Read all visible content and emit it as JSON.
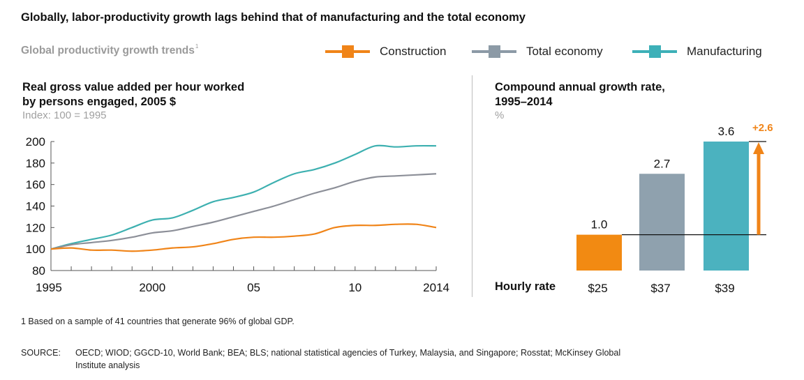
{
  "headline": "Globally, labor-productivity growth lags behind that of manufacturing and the total economy",
  "subhead": "Global productivity growth trends",
  "subhead_footnote_marker": "1",
  "legend": [
    {
      "label": "Construction",
      "color": "#F08418"
    },
    {
      "label": "Total economy",
      "color": "#8C9AA6"
    },
    {
      "label": "Manufacturing",
      "color": "#3DB0B8"
    }
  ],
  "left_panel": {
    "title_line1": "Real gross value added per hour worked",
    "title_line2": "by persons engaged, 2005 $",
    "subtitle": "Index: 100 = 1995"
  },
  "right_panel": {
    "title_line1": "Compound annual growth rate,",
    "title_line2": "1995–2014",
    "subtitle": "%",
    "hourly_rate_label": "Hourly rate"
  },
  "footnote": "1  Based on a sample of 41 countries that generate 96% of global GDP.",
  "source_label": "SOURCE:",
  "source_line1": "OECD; WIOD; GGCD-10, World Bank; BEA; BLS; national statistical agencies of Turkey, Malaysia, and Singapore; Rosstat; McKinsey Global",
  "source_line2": "Institute analysis",
  "chart_data": [
    {
      "type": "line",
      "title": "Real gross value added per hour worked by persons engaged, 2005 $",
      "subtitle": "Index: 100 = 1995",
      "xlabel": "",
      "ylabel": "",
      "ylim": [
        80,
        200
      ],
      "xlim": [
        1995,
        2014
      ],
      "yticks": [
        80,
        100,
        120,
        140,
        160,
        180,
        200
      ],
      "ytick_labels": [
        "80",
        "100",
        "120",
        "140",
        "160",
        "180",
        "200"
      ],
      "xticks": [
        1995,
        2000,
        2005,
        2010,
        2014
      ],
      "xtick_labels": [
        "1995",
        "2000",
        "05",
        "10",
        "2014"
      ],
      "grid": false,
      "x": [
        1995,
        1996,
        1997,
        1998,
        1999,
        2000,
        2001,
        2002,
        2003,
        2004,
        2005,
        2006,
        2007,
        2008,
        2009,
        2010,
        2011,
        2012,
        2013,
        2014
      ],
      "series": [
        {
          "name": "Construction",
          "color": "#F08418",
          "values": [
            100,
            101,
            99,
            99,
            98,
            99,
            101,
            102,
            105,
            109,
            111,
            111,
            112,
            114,
            120,
            122,
            122,
            123,
            123,
            120
          ]
        },
        {
          "name": "Total economy",
          "color": "#8C8F98",
          "values": [
            100,
            104,
            106,
            108,
            111,
            115,
            117,
            121,
            125,
            130,
            135,
            140,
            146,
            152,
            157,
            163,
            167,
            168,
            169,
            170
          ]
        },
        {
          "name": "Manufacturing",
          "color": "#3DB0B0",
          "values": [
            100,
            105,
            109,
            113,
            120,
            127,
            129,
            136,
            144,
            148,
            153,
            162,
            170,
            174,
            180,
            188,
            196,
            195,
            196,
            196
          ]
        }
      ]
    },
    {
      "type": "bar",
      "title": "Compound annual growth rate, 1995–2014",
      "ylabel": "%",
      "categories": [
        "Construction",
        "Total economy",
        "Manufacturing"
      ],
      "values": [
        1.0,
        2.7,
        3.6
      ],
      "value_labels": [
        "1.0",
        "2.7",
        "3.6"
      ],
      "colors": [
        "#F28A12",
        "#8FA1AE",
        "#4BB2BF"
      ],
      "category_sublabels": [
        "$25",
        "$37",
        "$39"
      ],
      "sublabel_title": "Hourly rate",
      "ylim": [
        0,
        3.6
      ],
      "annotation": {
        "label": "+2.6",
        "from_value": 1.0,
        "to_value": 3.6,
        "color": "#F08418"
      }
    }
  ]
}
